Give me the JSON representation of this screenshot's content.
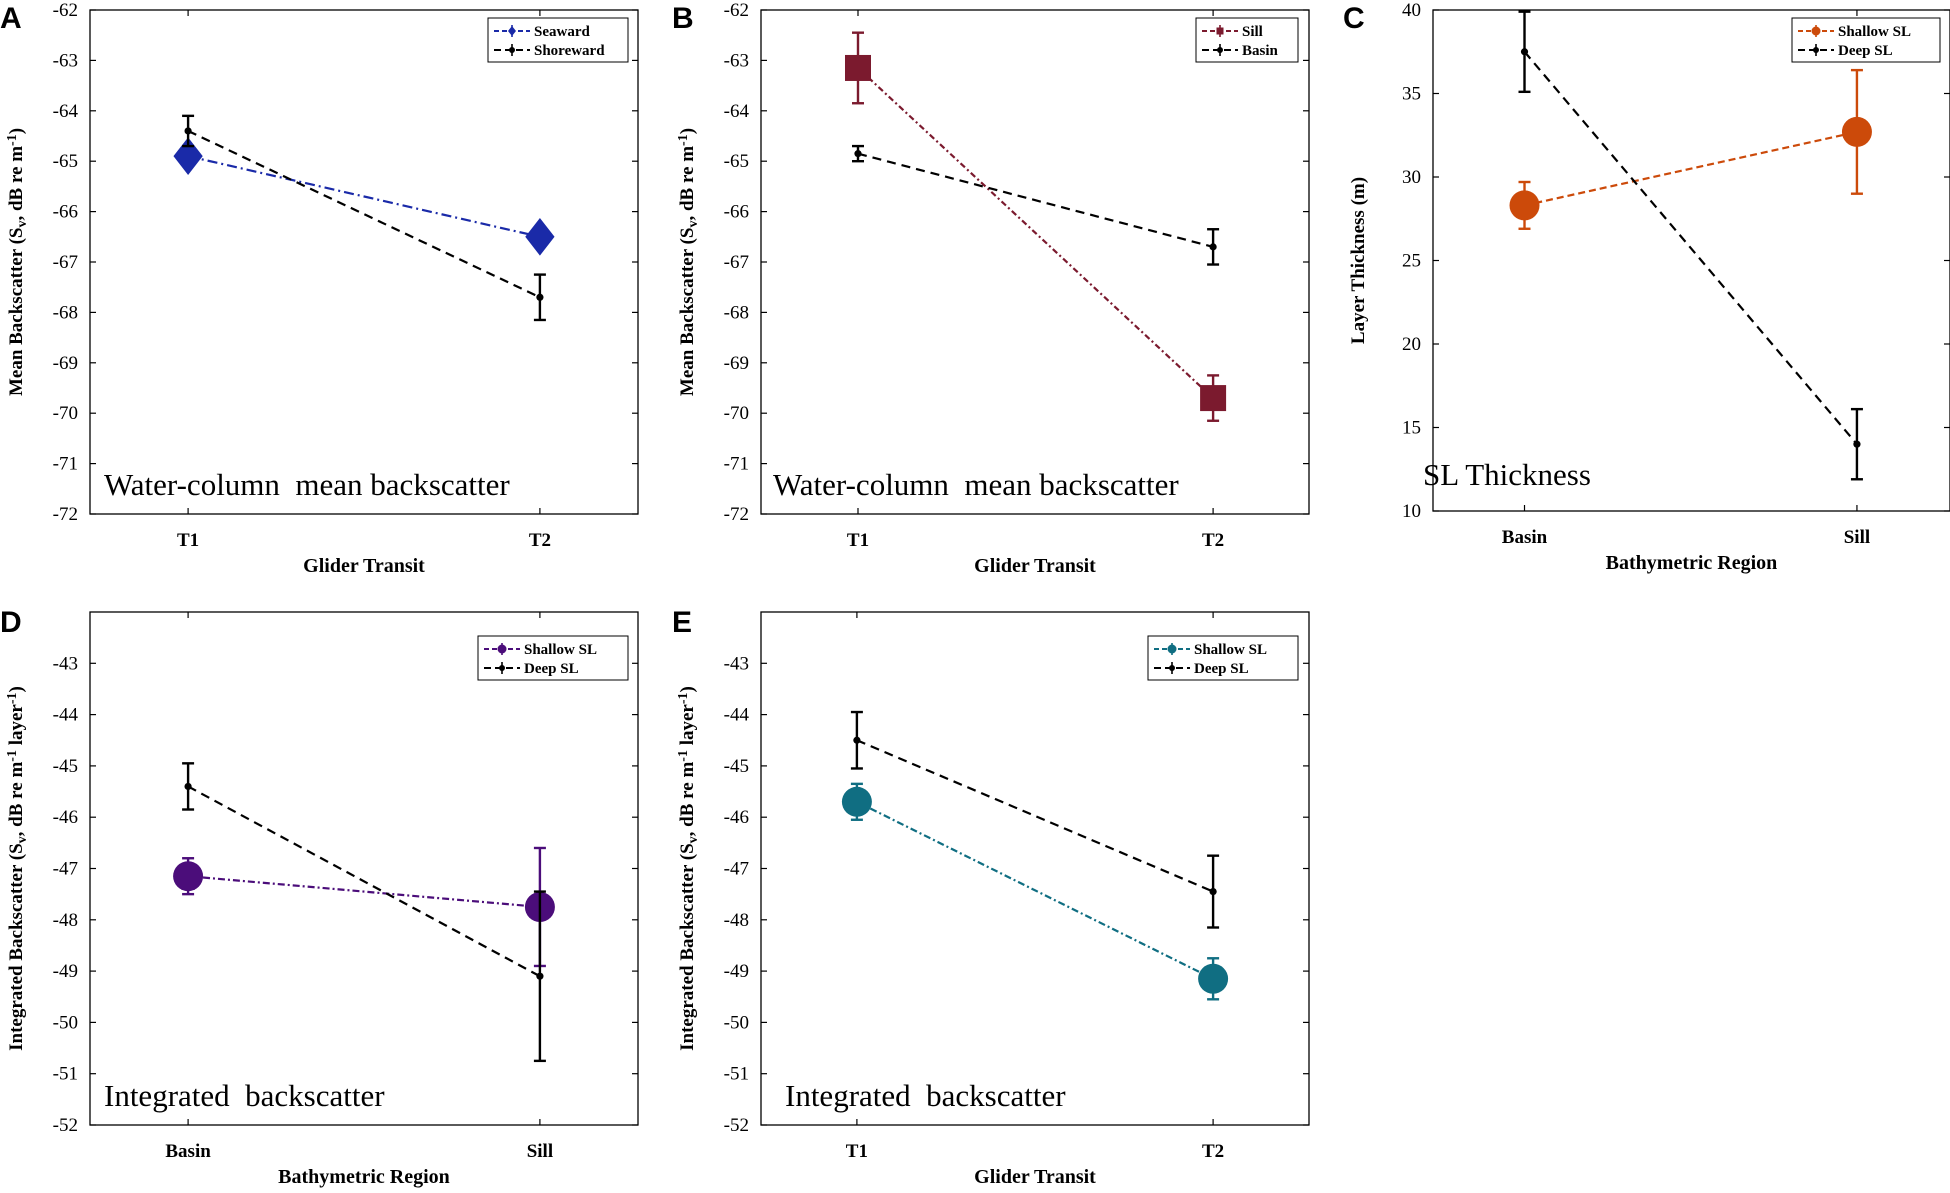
{
  "figure": {
    "panels": [
      "A",
      "B",
      "C",
      "D",
      "E"
    ]
  },
  "chart_data": [
    {
      "id": "A",
      "type": "line",
      "categories": [
        "T1",
        "T2"
      ],
      "xlabel": "Glider Transit",
      "ylabel": "Mean Backscatter (S",
      "ylabel_parts": [
        "Mean Backscatter (S",
        "v",
        ", dB re m",
        "-1",
        ")"
      ],
      "ylim": [
        -72,
        -62
      ],
      "yticks": [
        -62,
        -63,
        -64,
        -65,
        -66,
        -67,
        -68,
        -69,
        -70,
        -71,
        -72
      ],
      "annotation": "Water-column  mean backscatter",
      "series": [
        {
          "name": "Seaward",
          "color": "#1a2aa8",
          "dash": "10,4,2,4",
          "marker": "diamond",
          "values": [
            -64.9,
            -66.5
          ],
          "err": [
            0,
            0
          ]
        },
        {
          "name": "Shoreward",
          "color": "#000000",
          "dash": "9,6",
          "marker": "dot",
          "values": [
            -64.4,
            -67.7
          ],
          "err": [
            0.3,
            0.45
          ]
        }
      ]
    },
    {
      "id": "B",
      "type": "line",
      "categories": [
        "T1",
        "T2"
      ],
      "xlabel": "Glider Transit",
      "ylabel": "Mean Backscatter (S",
      "ylabel_parts": [
        "Mean Backscatter (S",
        "v",
        ", dB re m",
        "-1",
        ")"
      ],
      "ylim": [
        -72,
        -62
      ],
      "yticks": [
        -62,
        -63,
        -64,
        -65,
        -66,
        -67,
        -68,
        -69,
        -70,
        -71,
        -72
      ],
      "annotation": "Water-column  mean backscatter",
      "series": [
        {
          "name": "Sill",
          "color": "#7b1a2e",
          "dash": "6,3,2,3",
          "marker": "square",
          "values": [
            -63.15,
            -69.7
          ],
          "err": [
            0.7,
            0.45
          ]
        },
        {
          "name": "Basin",
          "color": "#000000",
          "dash": "9,6",
          "marker": "dot",
          "values": [
            -64.85,
            -66.7
          ],
          "err": [
            0.15,
            0.35
          ]
        }
      ]
    },
    {
      "id": "C",
      "type": "line",
      "categories": [
        "Basin",
        "Sill"
      ],
      "xlabel": "Bathymetric Region",
      "ylabel": "Layer Thickness (m)",
      "ylabel_parts": [
        "Layer Thickness (m)",
        "",
        "",
        "",
        ""
      ],
      "ylim": [
        10,
        40
      ],
      "yticks": [
        10,
        15,
        20,
        25,
        30,
        35,
        40
      ],
      "annotation": "SL Thickness",
      "series": [
        {
          "name": "Shallow SL",
          "color": "#cc4a0a",
          "dash": "7,4",
          "marker": "circle",
          "values": [
            28.3,
            32.7
          ],
          "err": [
            1.4,
            3.7
          ]
        },
        {
          "name": "Deep SL",
          "color": "#000000",
          "dash": "9,6",
          "marker": "dot",
          "values": [
            37.5,
            14.0
          ],
          "err": [
            2.4,
            2.1
          ]
        }
      ]
    },
    {
      "id": "D",
      "type": "line",
      "categories": [
        "Basin",
        "Sill"
      ],
      "xlabel": "Bathymetric Region",
      "ylabel": "Integrated Backscatter (S",
      "ylabel_parts": [
        "Integrated Backscatter (S",
        "v",
        ", dB re m",
        "-1",
        " layer"
      ],
      "ylabel_tail": "-1",
      "ylim": [
        -52,
        -42
      ],
      "yticks": [
        -43,
        -44,
        -45,
        -46,
        -47,
        -48,
        -49,
        -50,
        -51,
        -52
      ],
      "annotation": "Integrated  backscatter",
      "series": [
        {
          "name": "Shallow SL",
          "color": "#4b0d7a",
          "dash": "7,3,2,3",
          "marker": "circle",
          "values": [
            -47.15,
            -47.75
          ],
          "err": [
            0.35,
            1.15
          ]
        },
        {
          "name": "Deep SL",
          "color": "#000000",
          "dash": "9,6",
          "marker": "dot",
          "values": [
            -45.4,
            -49.1
          ],
          "err": [
            0.45,
            1.65
          ]
        }
      ]
    },
    {
      "id": "E",
      "type": "line",
      "categories": [
        "T1",
        "T2"
      ],
      "xlabel": "Glider Transit",
      "ylabel": "Integrated Backscatter (S",
      "ylabel_parts": [
        "Integrated Backscatter (S",
        "v",
        ", dB re m",
        "-1",
        " layer"
      ],
      "ylabel_tail": "-1",
      "ylim": [
        -52,
        -42
      ],
      "yticks": [
        -43,
        -44,
        -45,
        -46,
        -47,
        -48,
        -49,
        -50,
        -51,
        -52
      ],
      "annotation": "Integrated  backscatter",
      "series": [
        {
          "name": "Shallow SL",
          "color": "#106e82",
          "dash": "7,3,2,3",
          "marker": "circle",
          "values": [
            -45.7,
            -49.15
          ],
          "err": [
            0.35,
            0.4
          ]
        },
        {
          "name": "Deep SL",
          "color": "#000000",
          "dash": "9,6",
          "marker": "dot",
          "values": [
            -44.5,
            -47.45
          ],
          "err": [
            0.55,
            0.7
          ]
        }
      ]
    }
  ]
}
